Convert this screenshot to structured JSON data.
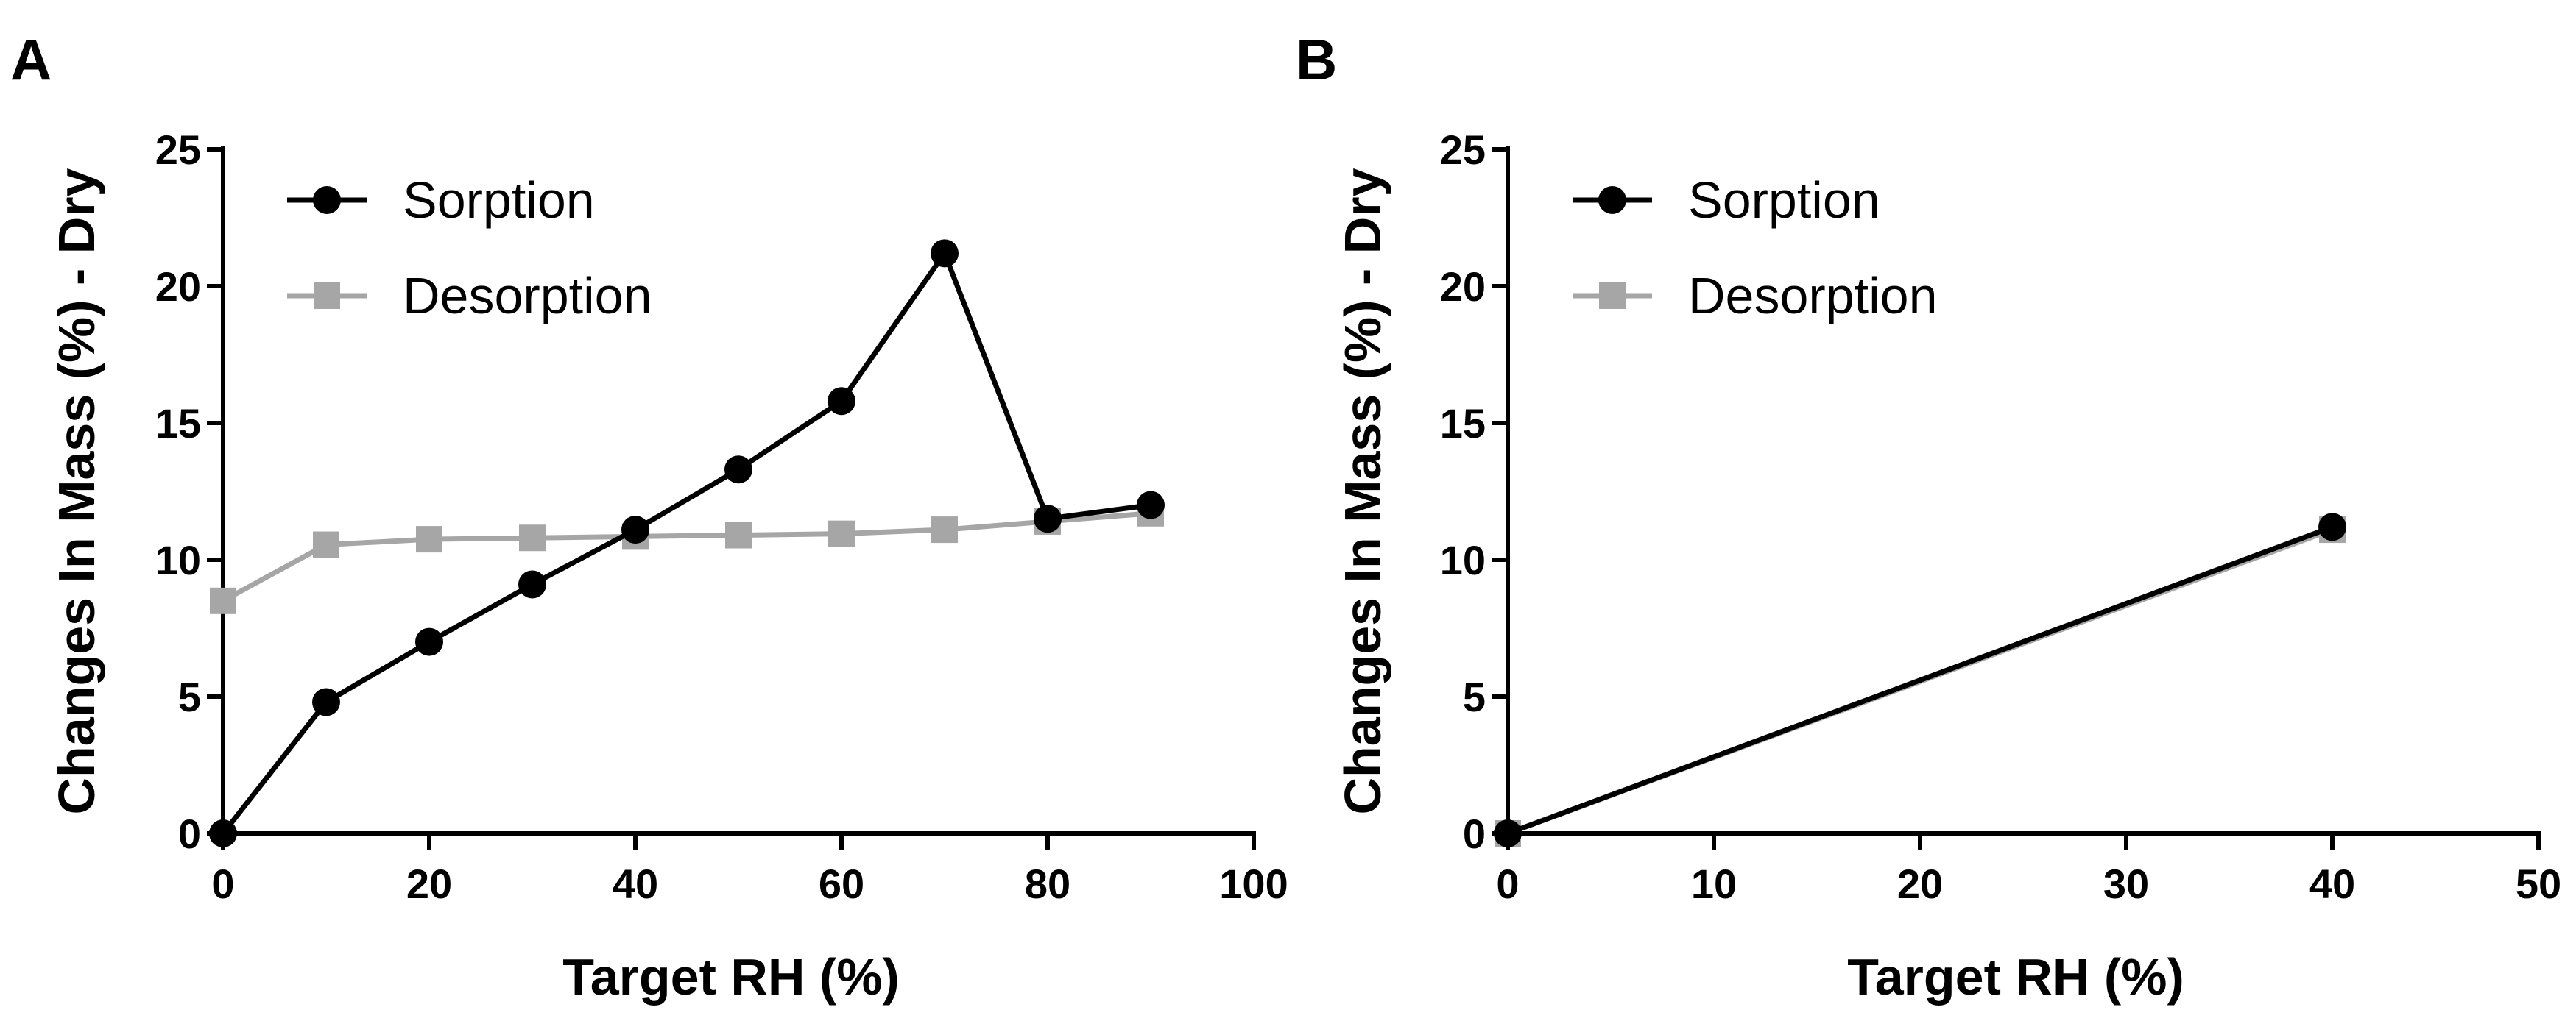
{
  "chart_data": [
    {
      "type": "line",
      "panel_label": "A",
      "xlabel": "Target RH (%)",
      "ylabel": "Changes In Mass (%) - Dry",
      "xlim": [
        0,
        100
      ],
      "ylim": [
        0,
        25
      ],
      "xticks": [
        0,
        20,
        40,
        60,
        80,
        100
      ],
      "yticks": [
        0,
        5,
        10,
        15,
        20,
        25
      ],
      "legend_position": "top-left",
      "series": [
        {
          "name": "Sorption",
          "color": "#000000",
          "marker": "circle",
          "x": [
            0,
            10,
            20,
            30,
            40,
            50,
            60,
            70,
            80,
            90
          ],
          "y": [
            0,
            4.8,
            7.0,
            9.1,
            11.1,
            13.3,
            15.8,
            21.2,
            11.5,
            12.0
          ]
        },
        {
          "name": "Desorption",
          "color": "#a6a6a6",
          "marker": "square",
          "x": [
            90,
            80,
            70,
            60,
            50,
            40,
            30,
            20,
            10,
            0
          ],
          "y": [
            11.7,
            11.4,
            11.1,
            10.95,
            10.9,
            10.85,
            10.8,
            10.75,
            10.55,
            8.5
          ]
        }
      ]
    },
    {
      "type": "line",
      "panel_label": "B",
      "xlabel": "Target RH (%)",
      "ylabel": "Changes In Mass (%) - Dry",
      "xlim": [
        0,
        50
      ],
      "ylim": [
        0,
        25
      ],
      "xticks": [
        0,
        10,
        20,
        30,
        40,
        50
      ],
      "yticks": [
        0,
        5,
        10,
        15,
        20,
        25
      ],
      "legend_position": "top-left",
      "series": [
        {
          "name": "Sorption",
          "color": "#000000",
          "marker": "circle",
          "x": [
            0,
            40
          ],
          "y": [
            0,
            11.2
          ]
        },
        {
          "name": "Desorption",
          "color": "#a6a6a6",
          "marker": "square",
          "x": [
            40,
            0
          ],
          "y": [
            11.1,
            0
          ]
        }
      ]
    }
  ]
}
